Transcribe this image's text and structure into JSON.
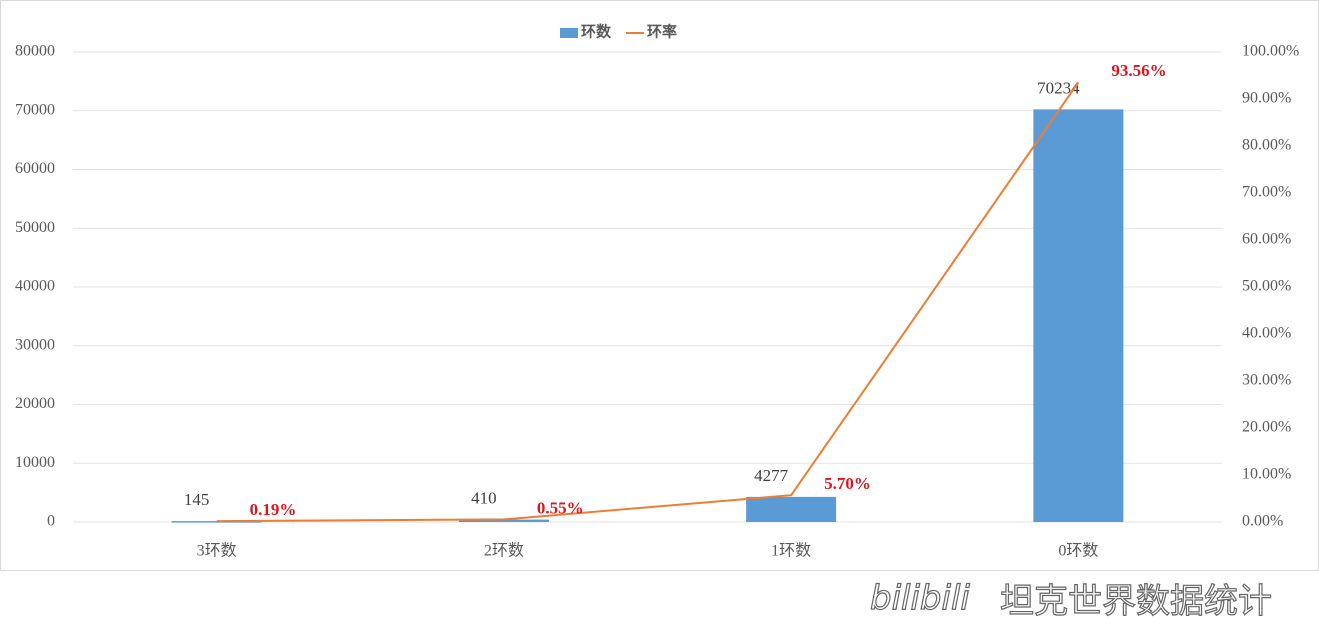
{
  "chart_data": {
    "type": "bar",
    "categories": [
      "3环数",
      "2环数",
      "1环数",
      "0环数"
    ],
    "series": [
      {
        "name": "环数",
        "type": "bar",
        "color": "#5b9bd5",
        "values": [
          145,
          410,
          4277,
          70234
        ]
      },
      {
        "name": "环率",
        "type": "line",
        "axis": "y2",
        "color": "#ed7d31",
        "values": [
          0.19,
          0.55,
          5.7,
          93.56
        ],
        "value_labels": [
          "0.19%",
          "0.55%",
          "5.70%",
          "93.56%"
        ],
        "label_color": "#e0121b"
      }
    ],
    "ylim": [
      0,
      80000
    ],
    "yticks": [
      0,
      10000,
      20000,
      30000,
      40000,
      50000,
      60000,
      70000,
      80000
    ],
    "y2lim": [
      0,
      100
    ],
    "y2ticks": [
      {
        "value": 0,
        "label": "0.00%"
      },
      {
        "value": 10,
        "label": "10.00%"
      },
      {
        "value": 20,
        "label": "20.00%"
      },
      {
        "value": 30,
        "label": "30.00%"
      },
      {
        "value": 40,
        "label": "40.00%"
      },
      {
        "value": 50,
        "label": "50.00%"
      },
      {
        "value": 60,
        "label": "60.00%"
      },
      {
        "value": 70,
        "label": "70.00%"
      },
      {
        "value": 80,
        "label": "80.00%"
      },
      {
        "value": 90,
        "label": "90.00%"
      },
      {
        "value": 100,
        "label": "100.00%"
      }
    ],
    "grid": true,
    "legend": "top",
    "watermark_logo": "bilibili",
    "watermark": "坦克世界数据统计"
  }
}
